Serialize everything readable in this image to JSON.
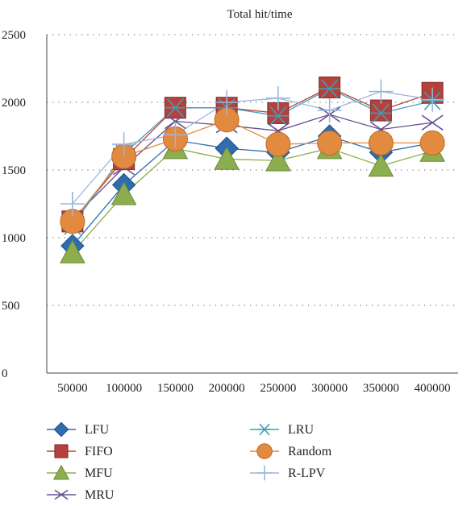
{
  "chart_data": {
    "type": "line",
    "title": "Total hit/time",
    "xlabel": "",
    "ylabel": "",
    "x": [
      50000,
      100000,
      150000,
      200000,
      250000,
      300000,
      350000,
      400000
    ],
    "x_tick_labels": [
      "50000",
      "100000",
      "150000",
      "200000",
      "250000",
      "300000",
      "350000",
      "400000"
    ],
    "ylim": [
      0,
      2500
    ],
    "y_ticks": [
      0,
      500,
      1000,
      1500,
      2000,
      2500
    ],
    "y_tick_labels": [
      "0",
      "500",
      "1000",
      "1500",
      "2000",
      "2500"
    ],
    "grid": "horizontal dotted",
    "legend_position": "bottom",
    "series": [
      {
        "name": "LFU",
        "color": "#2f6cb0",
        "marker": "diamond",
        "values": [
          940,
          1390,
          1720,
          1660,
          1630,
          1750,
          1630,
          1700
        ]
      },
      {
        "name": "FIFO",
        "color": "#b5413c",
        "marker": "square",
        "values": [
          1120,
          1580,
          1960,
          1960,
          1920,
          2110,
          1940,
          2070
        ]
      },
      {
        "name": "MFU",
        "color": "#8cae4e",
        "marker": "triangle",
        "values": [
          890,
          1320,
          1660,
          1580,
          1570,
          1660,
          1530,
          1640
        ]
      },
      {
        "name": "MRU",
        "color": "#66508f",
        "marker": "x",
        "values": [
          1140,
          1520,
          1860,
          1830,
          1790,
          1910,
          1800,
          1850
        ]
      },
      {
        "name": "LRU",
        "color": "#3e9fb8",
        "marker": "star",
        "values": [
          1090,
          1620,
          1960,
          1960,
          1900,
          2100,
          1920,
          2010
        ]
      },
      {
        "name": "Random",
        "color": "#e28a3f",
        "marker": "circle",
        "values": [
          1120,
          1600,
          1730,
          1870,
          1690,
          1700,
          1700,
          1700
        ]
      },
      {
        "name": "R-LPV",
        "color": "#9bb5db",
        "marker": "plus",
        "values": [
          1250,
          1690,
          1760,
          2000,
          2030,
          1940,
          2080,
          2020
        ]
      }
    ]
  }
}
